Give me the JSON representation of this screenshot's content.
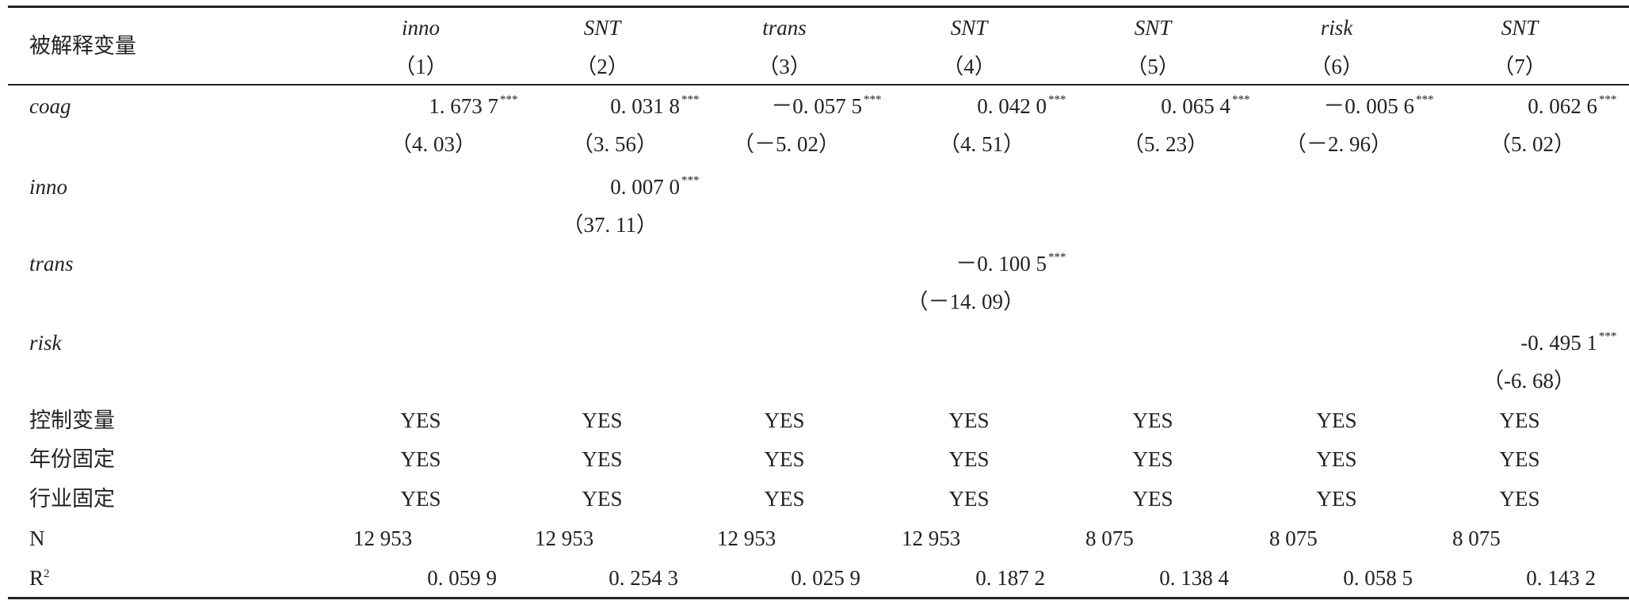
{
  "header": {
    "label": "被解释变量",
    "columns": [
      {
        "name": "inno",
        "number": "（1）"
      },
      {
        "name": "SNT",
        "number": "（2）"
      },
      {
        "name": "trans",
        "number": "（3）"
      },
      {
        "name": "SNT",
        "number": "（4）"
      },
      {
        "name": "SNT",
        "number": "（5）"
      },
      {
        "name": "risk",
        "number": "（6）"
      },
      {
        "name": "SNT",
        "number": "（7）"
      }
    ]
  },
  "coefficient_rows": [
    {
      "label": "coag",
      "cells": [
        {
          "coef": "1. 673 7",
          "stars": "***",
          "t": "（4. 03）"
        },
        {
          "coef": "0. 031 8",
          "stars": "***",
          "t": "（3. 56）"
        },
        {
          "coef": "－0. 057 5",
          "stars": "***",
          "t": "（－5. 02）"
        },
        {
          "coef": "0. 042 0",
          "stars": "***",
          "t": "（4. 51）"
        },
        {
          "coef": "0. 065 4",
          "stars": "***",
          "t": "（5. 23）"
        },
        {
          "coef": "－0. 005 6",
          "stars": "***",
          "t": "（－2. 96）"
        },
        {
          "coef": "0. 062 6",
          "stars": "***",
          "t": "（5. 02）"
        }
      ]
    },
    {
      "label": "inno",
      "cells": [
        null,
        {
          "coef": "0. 007 0",
          "stars": "***",
          "t": "（37. 11）"
        },
        null,
        null,
        null,
        null,
        null
      ]
    },
    {
      "label": "trans",
      "cells": [
        null,
        null,
        null,
        {
          "coef": "－0. 100 5",
          "stars": "***",
          "t": "（－14. 09）"
        },
        null,
        null,
        null
      ]
    },
    {
      "label": "risk",
      "cells": [
        null,
        null,
        null,
        null,
        null,
        null,
        {
          "coef": "-0. 495 1",
          "stars": "***",
          "t": "（-6. 68）"
        }
      ]
    }
  ],
  "indicator_rows": [
    {
      "label": "控制变量",
      "cells": [
        "YES",
        "YES",
        "YES",
        "YES",
        "YES",
        "YES",
        "YES"
      ]
    },
    {
      "label": "年份固定",
      "cells": [
        "YES",
        "YES",
        "YES",
        "YES",
        "YES",
        "YES",
        "YES"
      ]
    },
    {
      "label": "行业固定",
      "cells": [
        "YES",
        "YES",
        "YES",
        "YES",
        "YES",
        "YES",
        "YES"
      ]
    }
  ],
  "n_row": {
    "label": "N",
    "cells": [
      "12 953",
      "12 953",
      "12 953",
      "12 953",
      "8 075",
      "8 075",
      "8 075"
    ]
  },
  "r2_row": {
    "label": "R",
    "label_sup": "2",
    "cells": [
      "0. 059 9",
      "0. 254 3",
      "0. 025 9",
      "0. 187 2",
      "0. 138 4",
      "0. 058 5",
      "0. 143 2"
    ]
  }
}
